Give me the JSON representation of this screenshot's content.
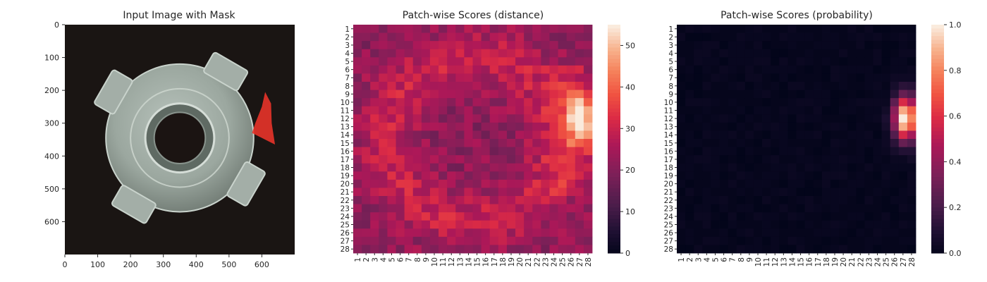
{
  "chart_data": [
    {
      "type": "image",
      "title": "Input Image with Mask",
      "xlim": [
        0,
        700
      ],
      "ylim": [
        700,
        0
      ],
      "xticks": [
        "0",
        "100",
        "200",
        "300",
        "400",
        "500",
        "600"
      ],
      "yticks": [
        "0",
        "100",
        "200",
        "300",
        "400",
        "500",
        "600"
      ],
      "colors": {
        "background": "#1a1513",
        "metal": "#c9d3cc",
        "metal_dark": "#6f7a73",
        "hole": "#1b1412",
        "mask": "#e8332a"
      }
    },
    {
      "type": "heatmap",
      "title": "Patch-wise Scores (distance)",
      "rows": 28,
      "cols": 28,
      "xticks": [
        "1",
        "2",
        "3",
        "4",
        "5",
        "6",
        "7",
        "8",
        "9",
        "10",
        "11",
        "12",
        "13",
        "14",
        "15",
        "16",
        "17",
        "18",
        "19",
        "20",
        "21",
        "22",
        "23",
        "24",
        "25",
        "26",
        "27",
        "28"
      ],
      "yticks": [
        "1",
        "2",
        "3",
        "4",
        "5",
        "6",
        "7",
        "8",
        "9",
        "10",
        "11",
        "12",
        "13",
        "14",
        "15",
        "16",
        "17",
        "18",
        "19",
        "20",
        "21",
        "22",
        "23",
        "24",
        "25",
        "26",
        "27",
        "28"
      ],
      "vmin": 0,
      "vmax": 55,
      "colorbar_ticks": [
        "0",
        "10",
        "20",
        "30",
        "40",
        "50"
      ],
      "colormap": "rocket",
      "values_note": "",
      "values": []
    },
    {
      "type": "heatmap",
      "title": "Patch-wise Scores (probability)",
      "rows": 28,
      "cols": 28,
      "xticks": [
        "1",
        "2",
        "3",
        "4",
        "5",
        "6",
        "7",
        "8",
        "9",
        "10",
        "11",
        "12",
        "13",
        "14",
        "15",
        "16",
        "17",
        "18",
        "19",
        "20",
        "21",
        "22",
        "23",
        "24",
        "25",
        "26",
        "27",
        "28"
      ],
      "yticks": [
        "1",
        "2",
        "3",
        "4",
        "5",
        "6",
        "7",
        "8",
        "9",
        "10",
        "11",
        "12",
        "13",
        "14",
        "15",
        "16",
        "17",
        "18",
        "19",
        "20",
        "21",
        "22",
        "23",
        "24",
        "25",
        "26",
        "27",
        "28"
      ],
      "vmin": 0.0,
      "vmax": 1.0,
      "colorbar_ticks": [
        "0.0",
        "0.2",
        "0.4",
        "0.6",
        "0.8",
        "1.0"
      ],
      "colormap": "rocket",
      "values": []
    }
  ]
}
